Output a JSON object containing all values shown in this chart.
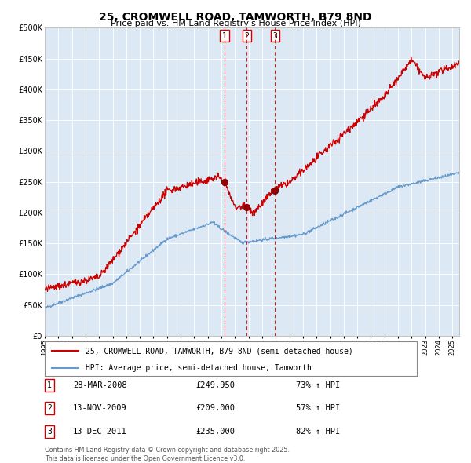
{
  "title": "25, CROMWELL ROAD, TAMWORTH, B79 8ND",
  "subtitle": "Price paid vs. HM Land Registry's House Price Index (HPI)",
  "title_fontsize": 10,
  "subtitle_fontsize": 8,
  "background_color": "#dce9f5",
  "plot_bg_color": "#dce9f5",
  "red_line_color": "#cc0000",
  "blue_line_color": "#6699cc",
  "dashed_line_color": "#cc0000",
  "ylim": [
    0,
    500000
  ],
  "yticks": [
    0,
    50000,
    100000,
    150000,
    200000,
    250000,
    300000,
    350000,
    400000,
    450000,
    500000
  ],
  "ytick_labels": [
    "£0",
    "£50K",
    "£100K",
    "£150K",
    "£200K",
    "£250K",
    "£300K",
    "£350K",
    "£400K",
    "£450K",
    "£500K"
  ],
  "year_start": 1995,
  "year_end": 2025,
  "transactions": [
    {
      "label": "1",
      "date": 2008.23,
      "price": 249950
    },
    {
      "label": "2",
      "date": 2009.87,
      "price": 209000
    },
    {
      "label": "3",
      "date": 2011.95,
      "price": 235000
    }
  ],
  "transaction_info": [
    {
      "num": "1",
      "date_str": "28-MAR-2008",
      "price_str": "£249,950",
      "hpi_str": "73% ↑ HPI"
    },
    {
      "num": "2",
      "date_str": "13-NOV-2009",
      "price_str": "£209,000",
      "hpi_str": "57% ↑ HPI"
    },
    {
      "num": "3",
      "date_str": "13-DEC-2011",
      "price_str": "£235,000",
      "hpi_str": "82% ↑ HPI"
    }
  ],
  "legend_label_red": "25, CROMWELL ROAD, TAMWORTH, B79 8ND (semi-detached house)",
  "legend_label_blue": "HPI: Average price, semi-detached house, Tamworth",
  "footer_text": "Contains HM Land Registry data © Crown copyright and database right 2025.\nThis data is licensed under the Open Government Licence v3.0."
}
